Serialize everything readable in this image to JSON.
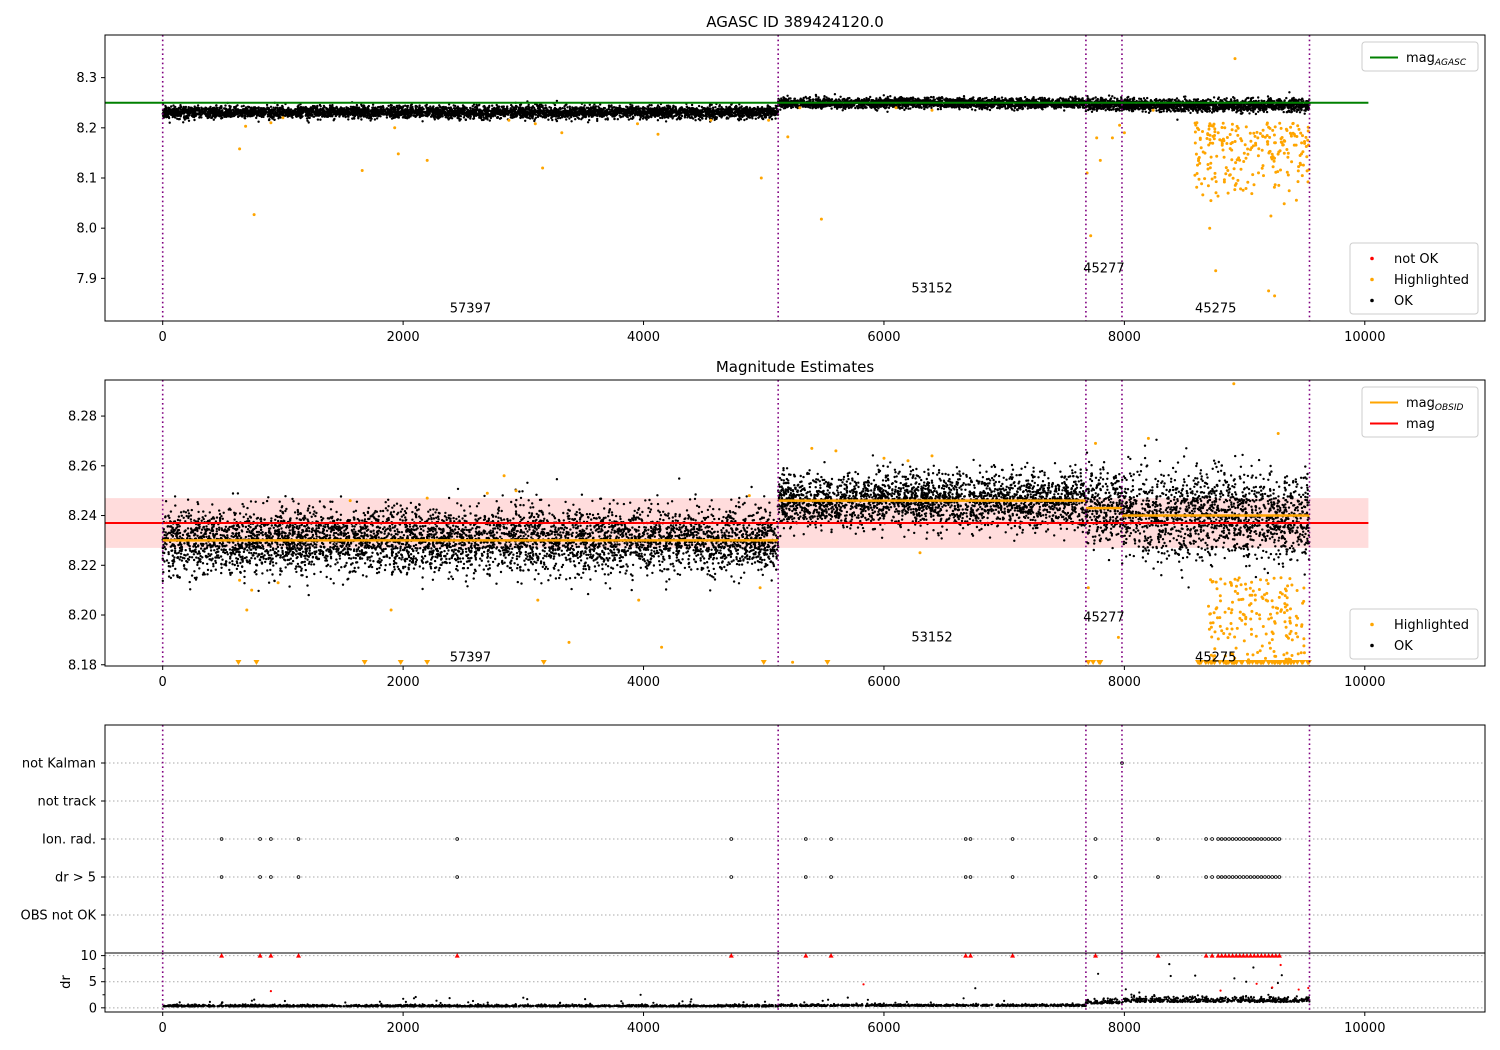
{
  "figure": {
    "background": "#ffffff"
  },
  "chart_data": [
    {
      "id": "agasc",
      "type": "scatter",
      "title": "AGASC ID 389424120.0",
      "xlim": [
        -480,
        11000
      ],
      "ylim": [
        7.815,
        8.385
      ],
      "x_ticks": [
        0,
        2000,
        4000,
        6000,
        8000,
        10000
      ],
      "y_ticks": [
        7.9,
        8.0,
        8.1,
        8.2,
        8.3
      ],
      "y_tick_labels": [
        "7.9",
        "8.0",
        "8.1",
        "8.2",
        "8.3"
      ],
      "obs_boundaries": [
        0,
        5120,
        7680,
        7980,
        9540
      ],
      "obs_labels": [
        {
          "text": "57397",
          "x": 2560,
          "y": 7.84
        },
        {
          "text": "53152",
          "x": 6400,
          "y": 7.88
        },
        {
          "text": "45277",
          "x": 7830,
          "y": 7.92
        },
        {
          "text": "45275",
          "x": 8760,
          "y": 7.84
        }
      ],
      "lines": [
        {
          "name": "mag",
          "sub": "AGASC",
          "color": "#008000",
          "x": [
            -480,
            10030
          ],
          "y": [
            8.25,
            8.25
          ]
        }
      ],
      "scatter_segments": [
        {
          "x0": 0,
          "x1": 5120,
          "center": 8.231,
          "spread": 0.006
        },
        {
          "x0": 5120,
          "x1": 7680,
          "center": 8.249,
          "spread": 0.005
        },
        {
          "x0": 7680,
          "x1": 7980,
          "center": 8.247,
          "spread": 0.006
        },
        {
          "x0": 7980,
          "x1": 9540,
          "center": 8.245,
          "spread": 0.006
        }
      ],
      "series": [
        {
          "name": "not OK",
          "color": "#ff0000"
        },
        {
          "name": "Highlighted",
          "color": "#ffa500"
        },
        {
          "name": "OK",
          "color": "#000000"
        }
      ],
      "legends": [
        {
          "position": "top-right",
          "entries": [
            {
              "kind": "line",
              "color": "#008000",
              "label": "mag",
              "sub": "AGASC"
            }
          ]
        },
        {
          "position": "bottom-right",
          "entries": [
            {
              "kind": "dot",
              "color": "#ff0000",
              "label": "not OK"
            },
            {
              "kind": "dot",
              "color": "#ffa500",
              "label": "Highlighted"
            },
            {
              "kind": "dot",
              "color": "#000000",
              "label": "OK"
            }
          ]
        }
      ]
    },
    {
      "id": "estimates",
      "type": "scatter",
      "title": "Magnitude Estimates",
      "xlim": [
        -480,
        11000
      ],
      "ylim": [
        8.1795,
        8.2945
      ],
      "x_ticks": [
        0,
        2000,
        4000,
        6000,
        8000,
        10000
      ],
      "y_ticks": [
        8.18,
        8.2,
        8.22,
        8.24,
        8.26,
        8.28
      ],
      "y_tick_labels": [
        "8.18",
        "8.20",
        "8.22",
        "8.24",
        "8.26",
        "8.28"
      ],
      "obs_boundaries": [
        0,
        5120,
        7680,
        7980,
        9540
      ],
      "obs_labels": [
        {
          "text": "57397",
          "x": 2560,
          "y": 8.183
        },
        {
          "text": "53152",
          "x": 6400,
          "y": 8.191
        },
        {
          "text": "45277",
          "x": 7830,
          "y": 8.199
        },
        {
          "text": "45275",
          "x": 8760,
          "y": 8.183
        }
      ],
      "band": {
        "color": "#ffc0c0",
        "y0": 8.227,
        "y1": 8.247,
        "x0": -480,
        "x1": 10030
      },
      "lines": [
        {
          "name": "mag",
          "color": "#ff0000",
          "x": [
            -480,
            10030
          ],
          "y": [
            8.237,
            8.237
          ]
        },
        {
          "name": "mag OBSID 57397",
          "color": "#ffa500",
          "x": [
            0,
            5120
          ],
          "y": [
            8.23,
            8.23
          ]
        },
        {
          "name": "mag OBSID 53152",
          "color": "#ffa500",
          "x": [
            5120,
            7680
          ],
          "y": [
            8.246,
            8.246
          ]
        },
        {
          "name": "mag OBSID 45277",
          "color": "#ffa500",
          "x": [
            7680,
            7980
          ],
          "y": [
            8.243,
            8.243
          ]
        },
        {
          "name": "mag OBSID 45275",
          "color": "#ffa500",
          "x": [
            7980,
            9540
          ],
          "y": [
            8.24,
            8.24
          ]
        }
      ],
      "scatter_segments": [
        {
          "x0": 0,
          "x1": 5120,
          "center": 8.23,
          "spread": 0.0065
        },
        {
          "x0": 5120,
          "x1": 7680,
          "center": 8.246,
          "spread": 0.0055
        },
        {
          "x0": 7680,
          "x1": 7980,
          "center": 8.243,
          "spread": 0.0075
        },
        {
          "x0": 7980,
          "x1": 9540,
          "center": 8.24,
          "spread": 0.0085
        }
      ],
      "series": [
        {
          "name": "Highlighted",
          "color": "#ffa500"
        },
        {
          "name": "OK",
          "color": "#000000"
        }
      ],
      "legends": [
        {
          "position": "top-right",
          "entries": [
            {
              "kind": "line",
              "color": "#ffa500",
              "label": "mag",
              "sub": "OBSID"
            },
            {
              "kind": "line",
              "color": "#ff0000",
              "label": "mag"
            }
          ]
        },
        {
          "position": "bottom-right",
          "entries": [
            {
              "kind": "dot",
              "color": "#ffa500",
              "label": "Highlighted"
            },
            {
              "kind": "dot",
              "color": "#000000",
              "label": "OK"
            }
          ]
        }
      ]
    },
    {
      "id": "flags",
      "type": "scatter",
      "xlim": [
        -480,
        11000
      ],
      "categories": [
        "not Kalman",
        "not track",
        "Ion. rad.",
        "dr > 5",
        "OBS not OK"
      ],
      "obs_boundaries": [
        0,
        5120,
        7680,
        7980,
        9540
      ],
      "flag_times": {
        "not Kalman": [
          7980
        ],
        "not track": [],
        "Ion. rad.": [
          490,
          810,
          900,
          1130,
          2450,
          4730,
          5350,
          5560,
          6680,
          6720,
          7070,
          7760,
          8280,
          8680,
          8730,
          8780,
          8810,
          8840,
          8870,
          8900,
          8930,
          8960,
          8990,
          9020,
          9050,
          9080,
          9110,
          9140,
          9170,
          9200,
          9230,
          9260,
          9290
        ],
        "dr > 5": [
          490,
          810,
          900,
          1130,
          2450,
          4730,
          5350,
          5560,
          6680,
          6720,
          7070,
          7760,
          8280,
          8680,
          8730,
          8780,
          8810,
          8840,
          8870,
          8900,
          8930,
          8960,
          8990,
          9020,
          9050,
          9080,
          9110,
          9140,
          9170,
          9200,
          9230,
          9260,
          9290
        ],
        "OBS not OK": []
      }
    },
    {
      "id": "dr",
      "type": "scatter",
      "ylabel": "dr",
      "xlim": [
        -480,
        11000
      ],
      "ylim": [
        -0.8,
        10.5
      ],
      "y_ticks": [
        0,
        5,
        10
      ],
      "y_tick_labels": [
        "0",
        "5",
        "10"
      ],
      "x_ticks": [
        0,
        2000,
        4000,
        6000,
        8000,
        10000
      ],
      "obs_boundaries": [
        0,
        5120,
        7680,
        7980,
        9540
      ],
      "clip_markers_at": 10,
      "clipped_times": [
        490,
        810,
        900,
        1130,
        2450,
        4730,
        5350,
        5560,
        6680,
        6720,
        7070,
        7760,
        8280,
        8680,
        8730,
        8780,
        8810,
        8840,
        8870,
        8900,
        8930,
        8960,
        8990,
        9020,
        9050,
        9080,
        9110,
        9140,
        9170,
        9200,
        9230,
        9260,
        9290
      ],
      "outlier_points": [
        {
          "x": 900,
          "y": 3.2
        },
        {
          "x": 5830,
          "y": 4.5
        },
        {
          "x": 8800,
          "y": 3.3
        },
        {
          "x": 9100,
          "y": 4.6
        },
        {
          "x": 9230,
          "y": 3.9
        },
        {
          "x": 9300,
          "y": 8.2
        },
        {
          "x": 9450,
          "y": 3.5
        },
        {
          "x": 9530,
          "y": 3.8
        }
      ],
      "scatter_segments": [
        {
          "x0": 0,
          "x1": 5120,
          "center": 0.25,
          "spread": 0.15
        },
        {
          "x0": 5120,
          "x1": 7680,
          "center": 0.35,
          "spread": 0.15
        },
        {
          "x0": 7680,
          "x1": 7980,
          "center": 0.8,
          "spread": 0.35
        },
        {
          "x0": 7980,
          "x1": 9540,
          "center": 1.1,
          "spread": 0.5
        }
      ],
      "series": [
        {
          "name": "dr",
          "color": "#000000"
        },
        {
          "name": "dr clipped",
          "color": "#ff0000"
        }
      ]
    }
  ]
}
